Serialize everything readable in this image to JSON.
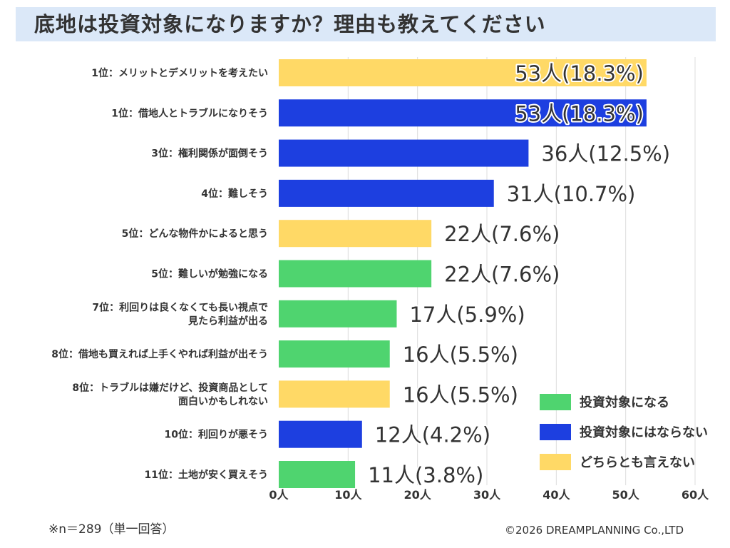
{
  "title": "底地は投資対象になりますか？理由も教えてください",
  "footnote": "※n＝289（単一回答）",
  "copyright": "©2026 DREAMPLANNING Co.,LTD",
  "colors": {
    "invest": "#4fd46f",
    "not_invest": "#1d3fe0",
    "neither": "#ffd966",
    "title_band": "#dbe8f8"
  },
  "chart_data": {
    "type": "bar",
    "orientation": "horizontal",
    "xlim": [
      0,
      60
    ],
    "x_ticks": [
      "0人",
      "10人",
      "20人",
      "30人",
      "40人",
      "50人",
      "60人"
    ],
    "grid": true,
    "legend_position": "bottom-right",
    "legend": [
      {
        "key": "invest",
        "label": "投資対象になる"
      },
      {
        "key": "not_invest",
        "label": "投資対象にはならない"
      },
      {
        "key": "neither",
        "label": "どちらとも言えない"
      }
    ],
    "bars": [
      {
        "label": [
          "1位：メリットとデメリットを考えたい"
        ],
        "value": 53,
        "value_label": "53人(18.3%)",
        "group": "neither"
      },
      {
        "label": [
          "1位：借地人とトラブルになりそう"
        ],
        "value": 53,
        "value_label": "53人(18.3%)",
        "group": "not_invest"
      },
      {
        "label": [
          "3位：権利関係が面倒そう"
        ],
        "value": 36,
        "value_label": "36人(12.5%)",
        "group": "not_invest"
      },
      {
        "label": [
          "4位：難しそう"
        ],
        "value": 31,
        "value_label": "31人(10.7%)",
        "group": "not_invest"
      },
      {
        "label": [
          "5位：どんな物件かによると思う"
        ],
        "value": 22,
        "value_label": "22人(7.6%)",
        "group": "neither"
      },
      {
        "label": [
          "5位：難しいが勉強になる"
        ],
        "value": 22,
        "value_label": "22人(7.6%)",
        "group": "invest"
      },
      {
        "label": [
          "7位：利回りは良くなくても長い視点で",
          "見たら利益が出る"
        ],
        "value": 17,
        "value_label": "17人(5.9%)",
        "group": "invest"
      },
      {
        "label": [
          "8位：借地も買えれば上手くやれば利益が出そう"
        ],
        "value": 16,
        "value_label": "16人(5.5%)",
        "group": "invest"
      },
      {
        "label": [
          "8位：トラブルは嫌だけど、投資商品として",
          "面白いかもしれない"
        ],
        "value": 16,
        "value_label": "16人(5.5%)",
        "group": "neither"
      },
      {
        "label": [
          "10位：利回りが悪そう"
        ],
        "value": 12,
        "value_label": "12人(4.2%)",
        "group": "not_invest"
      },
      {
        "label": [
          "11位：土地が安く買えそう"
        ],
        "value": 11,
        "value_label": "11人(3.8%)",
        "group": "invest"
      }
    ]
  }
}
